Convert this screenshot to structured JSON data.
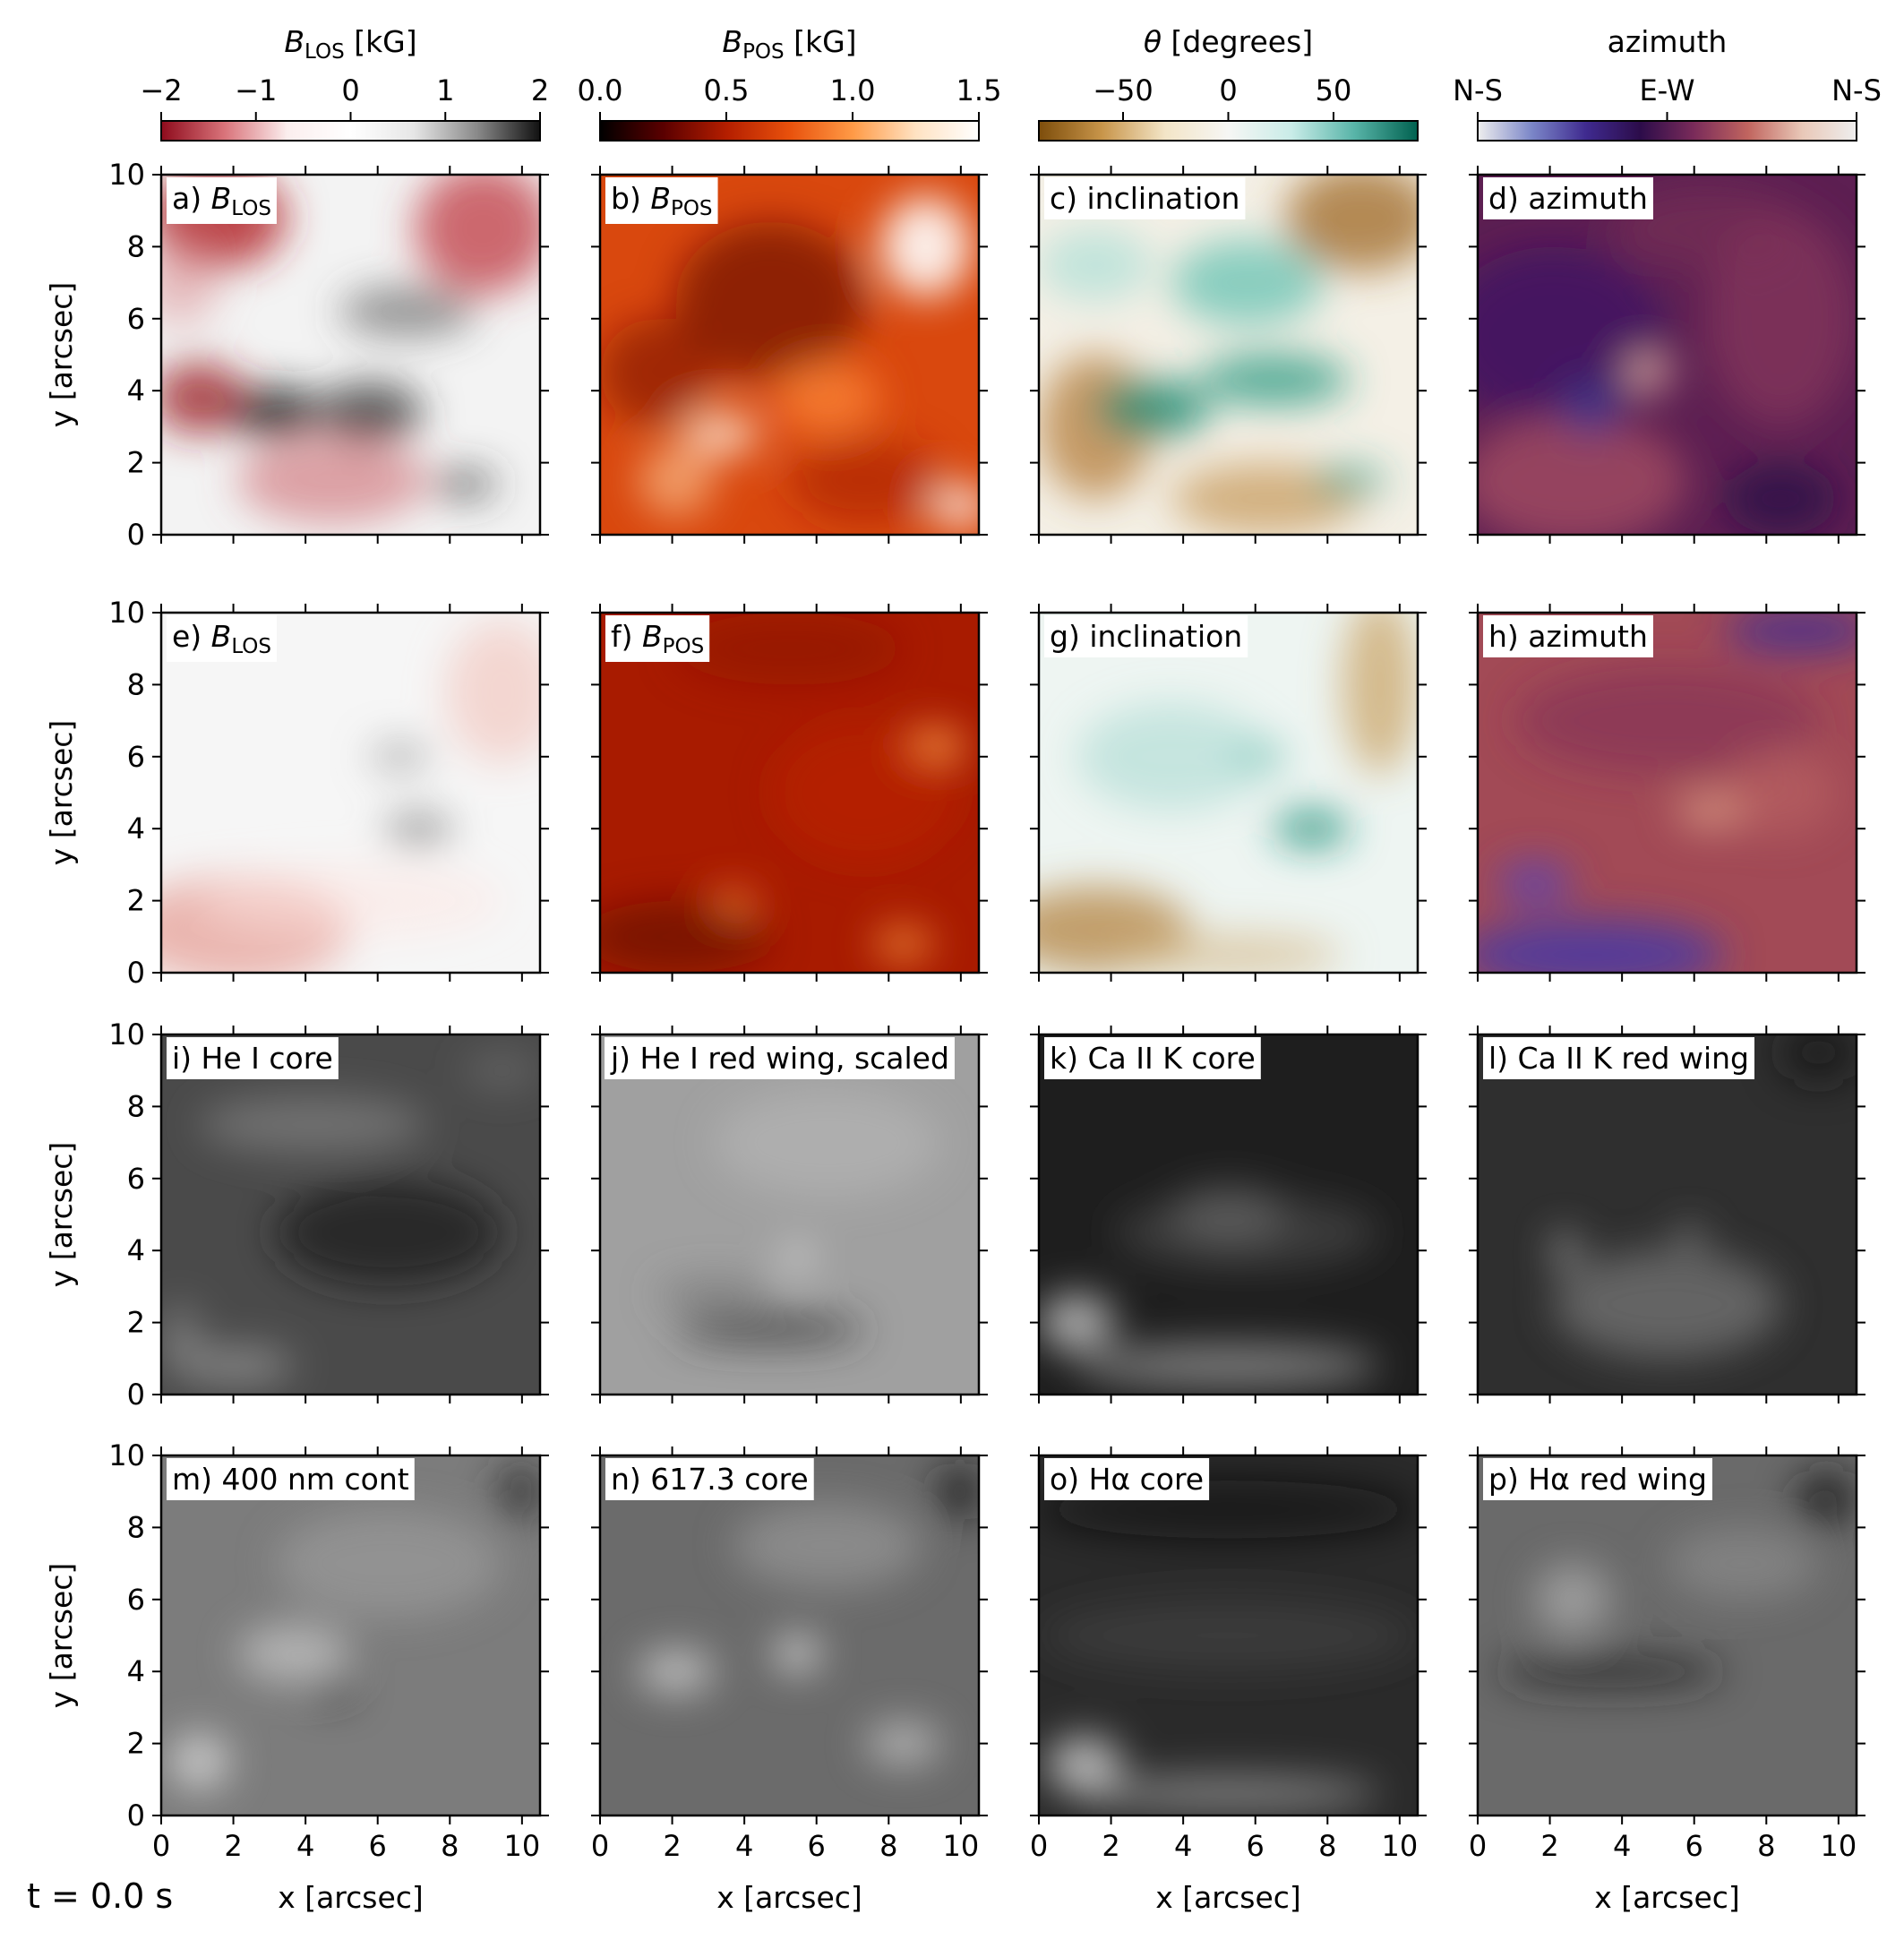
{
  "figure": {
    "time_label": "t = 0.0 s",
    "xlabel": "x [arcsec]",
    "ylabel": "y [arcsec]",
    "x_ticks": [
      "0",
      "2",
      "4",
      "6",
      "8",
      "10"
    ],
    "y_ticks": [
      "0",
      "2",
      "4",
      "6",
      "8",
      "10"
    ],
    "x_range": [
      0,
      10.5
    ],
    "y_range": [
      0,
      10
    ]
  },
  "colorbars": [
    {
      "title": "B_LOS [kG]",
      "title_main": "B",
      "title_sub": "LOS",
      "title_unit": " [kG]",
      "ticks": [
        "−2",
        "−1",
        "0",
        "1",
        "2"
      ],
      "tick_values": [
        -2,
        -1,
        0,
        1,
        2
      ],
      "range": [
        -2,
        2
      ],
      "colors": [
        "#8e0b1c",
        "#d9737a",
        "#fbeeee",
        "#ffffff",
        "#e6e6e6",
        "#8a8a8a",
        "#111111"
      ]
    },
    {
      "title": "B_POS [kG]",
      "title_main": "B",
      "title_sub": "POS",
      "title_unit": " [kG]",
      "ticks": [
        "0.0",
        "0.5",
        "1.0",
        "1.5"
      ],
      "tick_values": [
        0,
        0.5,
        1,
        1.5
      ],
      "range": [
        0,
        1.5
      ],
      "colors": [
        "#000000",
        "#5a0000",
        "#b41e00",
        "#e8510c",
        "#ff9a46",
        "#ffe2c2",
        "#ffffff"
      ]
    },
    {
      "title": "θ [degrees]",
      "title_main": "θ",
      "title_sub": "",
      "title_unit": " [degrees]",
      "ticks": [
        "−50",
        "0",
        "50"
      ],
      "tick_values": [
        -50,
        0,
        50
      ],
      "range": [
        -90,
        90
      ],
      "colors": [
        "#7d4d0b",
        "#c8954a",
        "#f3e5c7",
        "#f6f6f4",
        "#c9ece8",
        "#58b4a8",
        "#00614f"
      ]
    },
    {
      "title": "azimuth",
      "title_main": "azimuth",
      "title_sub": "",
      "title_unit": "",
      "ticks": [
        "N-S",
        "E-W",
        "N-S"
      ],
      "tick_values": [
        0,
        90,
        180
      ],
      "range": [
        0,
        180
      ],
      "colors": [
        "#eeeeee",
        "#7b86c8",
        "#3f2a8f",
        "#2c0c4a",
        "#7a2b5a",
        "#c1655f",
        "#e9c8b8",
        "#eeeeee"
      ]
    }
  ],
  "panels": [
    {
      "label": "a)",
      "text": "B",
      "sub": "LOS",
      "row": 0,
      "col": 0,
      "style": "blos"
    },
    {
      "label": "b)",
      "text": "B",
      "sub": "POS",
      "row": 0,
      "col": 1,
      "style": "bpos"
    },
    {
      "label": "c)",
      "text": "inclination",
      "sub": "",
      "row": 0,
      "col": 2,
      "style": "incl"
    },
    {
      "label": "d)",
      "text": "azimuth",
      "sub": "",
      "row": 0,
      "col": 3,
      "style": "azim"
    },
    {
      "label": "e)",
      "text": "B",
      "sub": "LOS",
      "row": 1,
      "col": 0,
      "style": "blos2"
    },
    {
      "label": "f)",
      "text": "B",
      "sub": "POS",
      "row": 1,
      "col": 1,
      "style": "bpos2"
    },
    {
      "label": "g)",
      "text": "inclination",
      "sub": "",
      "row": 1,
      "col": 2,
      "style": "incl2"
    },
    {
      "label": "h)",
      "text": "azimuth",
      "sub": "",
      "row": 1,
      "col": 3,
      "style": "azim2"
    },
    {
      "label": "i)",
      "text": "He I core",
      "sub": "",
      "row": 2,
      "col": 0,
      "style": "he_core"
    },
    {
      "label": "j)",
      "text": "He I red wing, scaled",
      "sub": "",
      "row": 2,
      "col": 1,
      "style": "he_wing"
    },
    {
      "label": "k)",
      "text": "Ca II K core",
      "sub": "",
      "row": 2,
      "col": 2,
      "style": "cak_core"
    },
    {
      "label": "l)",
      "text": "Ca II K red wing",
      "sub": "",
      "row": 2,
      "col": 3,
      "style": "cak_wing"
    },
    {
      "label": "m)",
      "text": "400 nm cont",
      "sub": "",
      "row": 3,
      "col": 0,
      "style": "cont"
    },
    {
      "label": "n)",
      "text": "617.3 core",
      "sub": "",
      "row": 3,
      "col": 1,
      "style": "fe_core"
    },
    {
      "label": "o)",
      "text": "Hα core",
      "sub": "",
      "row": 3,
      "col": 2,
      "style": "ha_core"
    },
    {
      "label": "p)",
      "text": "Hα red wing",
      "sub": "",
      "row": 3,
      "col": 3,
      "style": "ha_wing"
    }
  ]
}
